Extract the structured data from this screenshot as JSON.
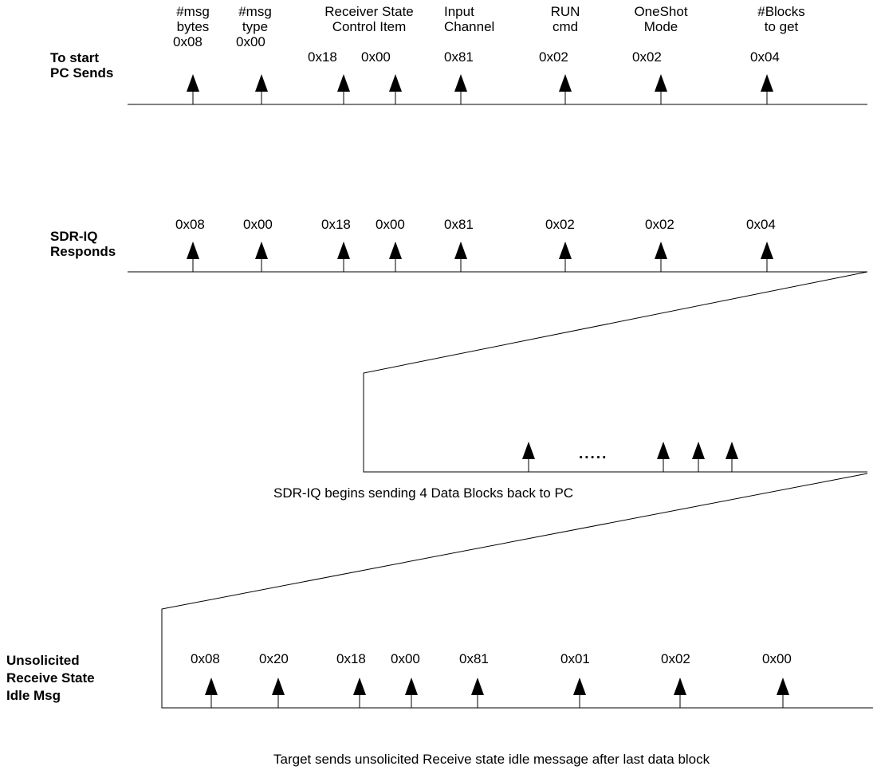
{
  "row1": {
    "label": "To start\nPC Sends",
    "headers": [
      "#msg\nbytes",
      "#msg\ntype",
      "Receiver State\nControl Item",
      "Input\nChannel",
      "RUN\ncmd",
      "OneShot\nMode",
      "#Blocks\nto get"
    ],
    "values": [
      "0x08",
      "0x00",
      "0x18",
      "0x00",
      "0x81",
      "0x02",
      "0x02",
      "0x04"
    ]
  },
  "row2": {
    "label": "SDR-IQ\nResponds",
    "values": [
      "0x08",
      "0x00",
      "0x18",
      "0x00",
      "0x81",
      "0x02",
      "0x02",
      "0x04"
    ]
  },
  "data_blocks": {
    "ellipsis": ".....",
    "caption": "SDR-IQ begins sending 4 Data Blocks back to PC"
  },
  "row3": {
    "label": "Unsolicited\nReceive State\nIdle Msg",
    "values": [
      "0x08",
      "0x20",
      "0x18",
      "0x00",
      "0x81",
      "0x01",
      "0x02",
      "0x00"
    ],
    "caption": "Target sends unsolicited Receive state idle message after last data block"
  }
}
